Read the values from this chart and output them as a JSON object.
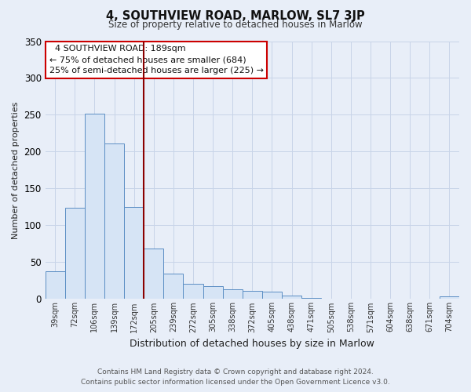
{
  "title": "4, SOUTHVIEW ROAD, MARLOW, SL7 3JP",
  "subtitle": "Size of property relative to detached houses in Marlow",
  "xlabel": "Distribution of detached houses by size in Marlow",
  "ylabel": "Number of detached properties",
  "bar_labels": [
    "39sqm",
    "72sqm",
    "106sqm",
    "139sqm",
    "172sqm",
    "205sqm",
    "239sqm",
    "272sqm",
    "305sqm",
    "338sqm",
    "372sqm",
    "405sqm",
    "438sqm",
    "471sqm",
    "505sqm",
    "538sqm",
    "571sqm",
    "604sqm",
    "638sqm",
    "671sqm",
    "704sqm"
  ],
  "bar_values": [
    38,
    124,
    252,
    211,
    125,
    68,
    34,
    21,
    17,
    13,
    11,
    10,
    5,
    1,
    0,
    0,
    0,
    0,
    0,
    0,
    4
  ],
  "bar_color": "#d6e4f5",
  "bar_edge_color": "#5b8ec4",
  "highlight_color": "#8b0000",
  "annotation_title": "4 SOUTHVIEW ROAD: 189sqm",
  "annotation_line1": "← 75% of detached houses are smaller (684)",
  "annotation_line2": "25% of semi-detached houses are larger (225) →",
  "annotation_box_color": "#ffffff",
  "annotation_box_edge": "#cc0000",
  "ylim": [
    0,
    350
  ],
  "yticks": [
    0,
    50,
    100,
    150,
    200,
    250,
    300,
    350
  ],
  "footer_line1": "Contains HM Land Registry data © Crown copyright and database right 2024.",
  "footer_line2": "Contains public sector information licensed under the Open Government Licence v3.0.",
  "background_color": "#e8eef8",
  "plot_bg_color": "#e8eef8",
  "grid_color": "#c8d4e8"
}
